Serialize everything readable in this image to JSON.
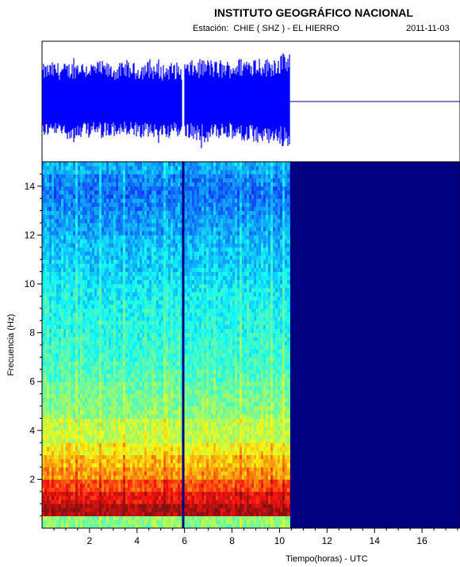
{
  "header": {
    "institute": "INSTITUTO GEOGRÁFICO NACIONAL",
    "station_label": "Estación:",
    "station": "CHIE ( SHZ ) - EL HIERRO",
    "date": "2011-11-03"
  },
  "chart_data": [
    {
      "type": "line",
      "title": "",
      "description_kind": "seismogram",
      "xlabel": "",
      "ylabel": "",
      "xlim": [
        0,
        17.6
      ],
      "data_until_hour": 10.45,
      "gap_at_hour": 5.95,
      "color": "#0000ff",
      "axis_line_color": "#000080",
      "amplitude_envelope": {
        "hours": [
          0,
          0.5,
          1,
          1.5,
          2,
          2.5,
          3,
          3.5,
          4,
          4.5,
          5,
          5.5,
          5.9,
          6.0,
          6.5,
          7,
          7.5,
          8,
          8.5,
          9,
          9.5,
          10,
          10.4
        ],
        "upper": [
          0.62,
          0.66,
          0.64,
          0.7,
          0.66,
          0.68,
          0.62,
          0.66,
          0.64,
          0.68,
          0.62,
          0.66,
          0.64,
          0.66,
          0.7,
          0.72,
          0.66,
          0.7,
          0.74,
          0.78,
          0.72,
          0.8,
          0.82
        ],
        "lower": [
          0.58,
          0.6,
          0.62,
          0.66,
          0.6,
          0.62,
          0.6,
          0.58,
          0.62,
          0.64,
          0.6,
          0.62,
          0.6,
          0.62,
          0.66,
          0.7,
          0.62,
          0.66,
          0.68,
          0.72,
          0.7,
          0.74,
          0.76
        ]
      }
    },
    {
      "type": "heatmap",
      "title": "",
      "xlabel": "Tiempo(horas) - UTC",
      "ylabel": "Frecuencia  (Hz)",
      "xlim": [
        0,
        17.6
      ],
      "ylim": [
        0,
        15
      ],
      "xticks": [
        2,
        4,
        6,
        8,
        10,
        12,
        14,
        16
      ],
      "yticks": [
        2,
        4,
        6,
        8,
        10,
        12,
        14
      ],
      "data_until_hour": 10.45,
      "gap_at_hour": 5.95,
      "no_data_color": "#000080",
      "colormap": [
        "#000080",
        "#0000ff",
        "#0080ff",
        "#00ffff",
        "#80ff80",
        "#ffff00",
        "#ff8000",
        "#ff0000",
        "#800000"
      ],
      "frequency_bands_hz": [
        0.25,
        0.75,
        1.25,
        1.75,
        2.25,
        2.75,
        3.25,
        3.75,
        4.25,
        4.75,
        5.25,
        5.75,
        6.25,
        6.75,
        7.25,
        7.75,
        8.25,
        8.75,
        9.25,
        9.75,
        10.25,
        10.75,
        11.25,
        11.75,
        12.25,
        12.75,
        13.25,
        13.75,
        14.25,
        14.75
      ],
      "band_intensity": [
        0.5,
        0.95,
        0.88,
        0.8,
        0.72,
        0.68,
        0.62,
        0.56,
        0.55,
        0.5,
        0.48,
        0.47,
        0.44,
        0.42,
        0.41,
        0.4,
        0.39,
        0.38,
        0.37,
        0.36,
        0.34,
        0.32,
        0.31,
        0.3,
        0.27,
        0.26,
        0.24,
        0.22,
        0.24,
        0.28
      ]
    }
  ]
}
